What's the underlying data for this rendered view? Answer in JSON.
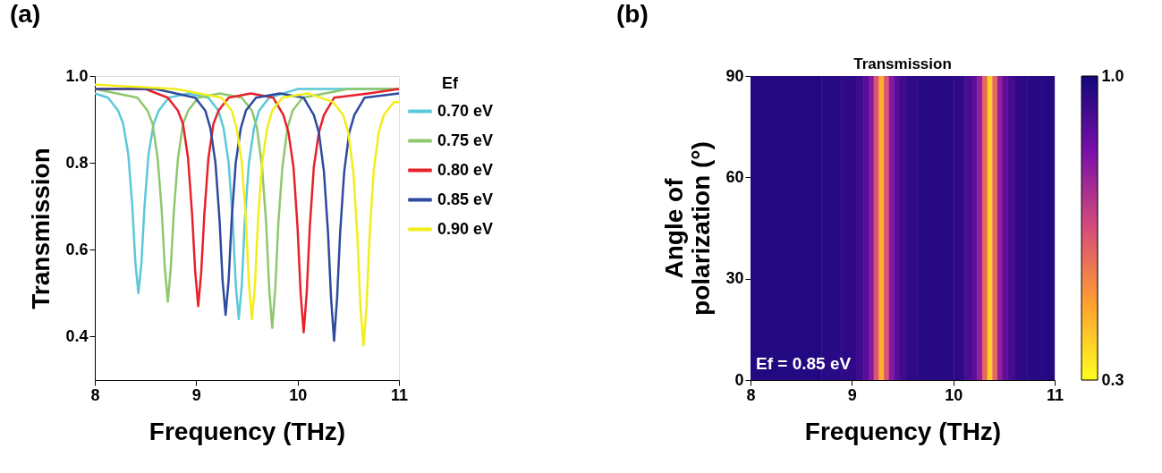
{
  "chart_data": [
    {
      "type": "line",
      "xlabel": "Frequency (THz)",
      "ylabel": "Transmission",
      "legend_title": "Ef",
      "legend": "right",
      "grid": false,
      "line_style": "solid",
      "annotations": [
        "(a)"
      ],
      "xlim": [
        8,
        11
      ],
      "xticks": [
        8,
        9,
        10,
        11
      ],
      "ylim": [
        0.3,
        1.0
      ],
      "yticks": [
        0.4,
        0.6,
        0.8,
        {
          "value": 1.0,
          "label": "1.0"
        }
      ],
      "series": [
        {
          "name": "0.70 eV",
          "color": "#5bc8d8",
          "x": [
            8.0,
            8.13,
            8.23,
            8.28,
            8.33,
            8.37,
            8.4,
            8.43,
            8.46,
            8.49,
            8.53,
            8.58,
            8.63,
            8.73,
            8.925,
            9.12,
            9.22,
            9.27,
            9.32,
            9.36,
            9.39,
            9.42,
            9.45,
            9.48,
            9.52,
            9.57,
            9.62,
            9.72,
            10.0,
            10.5,
            11.0
          ],
          "values": [
            0.96,
            0.95,
            0.92,
            0.89,
            0.82,
            0.7,
            0.57,
            0.5,
            0.57,
            0.7,
            0.82,
            0.89,
            0.92,
            0.95,
            0.96,
            0.95,
            0.92,
            0.88,
            0.8,
            0.67,
            0.52,
            0.44,
            0.52,
            0.67,
            0.8,
            0.88,
            0.92,
            0.95,
            0.97,
            0.97,
            0.97
          ]
        },
        {
          "name": "0.75 eV",
          "color": "#8fc76e",
          "x": [
            8.0,
            8.42,
            8.52,
            8.57,
            8.62,
            8.66,
            8.69,
            8.72,
            8.75,
            8.78,
            8.82,
            8.87,
            8.92,
            9.02,
            9.235,
            9.45,
            9.55,
            9.6,
            9.65,
            9.69,
            9.72,
            9.75,
            9.78,
            9.81,
            9.85,
            9.9,
            9.95,
            10.05,
            10.5,
            11.0
          ],
          "values": [
            0.97,
            0.95,
            0.92,
            0.89,
            0.81,
            0.69,
            0.56,
            0.48,
            0.56,
            0.69,
            0.81,
            0.89,
            0.92,
            0.95,
            0.96,
            0.95,
            0.92,
            0.88,
            0.79,
            0.66,
            0.51,
            0.42,
            0.51,
            0.66,
            0.79,
            0.88,
            0.92,
            0.95,
            0.97,
            0.97
          ]
        },
        {
          "name": "0.80 eV",
          "color": "#e8202a",
          "x": [
            8.0,
            8.5,
            8.72,
            8.82,
            8.87,
            8.92,
            8.96,
            8.99,
            9.02,
            9.05,
            9.08,
            9.12,
            9.17,
            9.22,
            9.32,
            9.54,
            9.76,
            9.86,
            9.91,
            9.96,
            10.0,
            10.03,
            10.06,
            10.09,
            10.12,
            10.16,
            10.21,
            10.26,
            10.36,
            10.7,
            11.0
          ],
          "values": [
            0.97,
            0.97,
            0.95,
            0.92,
            0.89,
            0.81,
            0.68,
            0.55,
            0.47,
            0.55,
            0.68,
            0.81,
            0.89,
            0.92,
            0.95,
            0.96,
            0.95,
            0.91,
            0.87,
            0.79,
            0.65,
            0.5,
            0.41,
            0.5,
            0.65,
            0.79,
            0.87,
            0.91,
            0.95,
            0.96,
            0.97
          ]
        },
        {
          "name": "0.85 eV",
          "color": "#2e4a9e",
          "x": [
            8.0,
            8.6,
            8.99,
            9.09,
            9.14,
            9.19,
            9.23,
            9.26,
            9.29,
            9.32,
            9.35,
            9.39,
            9.44,
            9.49,
            9.59,
            9.825,
            10.06,
            10.16,
            10.21,
            10.26,
            10.3,
            10.33,
            10.36,
            10.39,
            10.42,
            10.46,
            10.51,
            10.56,
            10.66,
            11.0
          ],
          "values": [
            0.97,
            0.97,
            0.95,
            0.92,
            0.88,
            0.8,
            0.67,
            0.53,
            0.45,
            0.53,
            0.67,
            0.8,
            0.88,
            0.92,
            0.95,
            0.96,
            0.95,
            0.91,
            0.87,
            0.78,
            0.64,
            0.49,
            0.39,
            0.49,
            0.64,
            0.78,
            0.87,
            0.91,
            0.95,
            0.96
          ]
        },
        {
          "name": "0.90 eV",
          "color": "#f2ee1a",
          "x": [
            8.0,
            8.8,
            9.25,
            9.35,
            9.4,
            9.45,
            9.49,
            9.52,
            9.55,
            9.58,
            9.61,
            9.65,
            9.7,
            9.75,
            9.85,
            10.1,
            10.35,
            10.45,
            10.5,
            10.55,
            10.59,
            10.62,
            10.65,
            10.68,
            10.71,
            10.75,
            10.8,
            10.85,
            10.95,
            11.0
          ],
          "values": [
            0.98,
            0.97,
            0.95,
            0.92,
            0.88,
            0.8,
            0.67,
            0.52,
            0.44,
            0.52,
            0.67,
            0.8,
            0.88,
            0.92,
            0.95,
            0.96,
            0.94,
            0.91,
            0.87,
            0.78,
            0.63,
            0.47,
            0.38,
            0.47,
            0.63,
            0.78,
            0.87,
            0.91,
            0.94,
            0.94
          ]
        }
      ]
    },
    {
      "type": "heatmap",
      "title": "Transmission",
      "xlabel": "Frequency (THz)",
      "ylabel": "Angle of polarization (°)",
      "annotations": [
        "(b)",
        "Ef = 0.85 eV"
      ],
      "xlim": [
        8,
        11
      ],
      "xticks": [
        8,
        9,
        10,
        11
      ],
      "ylim": [
        0,
        90
      ],
      "yticks": [
        0,
        30,
        60,
        90
      ],
      "clim": [
        0.3,
        1.0
      ],
      "cticks": [
        0.3,
        {
          "value": 1.0,
          "label": "1.0"
        }
      ],
      "x": [
        8.0,
        8.3,
        8.6,
        8.8,
        8.99,
        9.09,
        9.14,
        9.19,
        9.24,
        9.29,
        9.34,
        9.39,
        9.44,
        9.49,
        9.59,
        9.7,
        9.825,
        9.95,
        10.06,
        10.16,
        10.21,
        10.26,
        10.31,
        10.36,
        10.41,
        10.46,
        10.51,
        10.56,
        10.66,
        10.8,
        11.0
      ],
      "cells": [
        [
          0.97,
          0.97,
          0.97,
          0.96,
          0.95,
          0.92,
          0.88,
          0.8,
          0.63,
          0.45,
          0.63,
          0.8,
          0.88,
          0.92,
          0.95,
          0.96,
          0.96,
          0.96,
          0.95,
          0.91,
          0.87,
          0.78,
          0.59,
          0.39,
          0.59,
          0.78,
          0.87,
          0.91,
          0.95,
          0.96,
          0.97
        ]
      ]
    }
  ]
}
